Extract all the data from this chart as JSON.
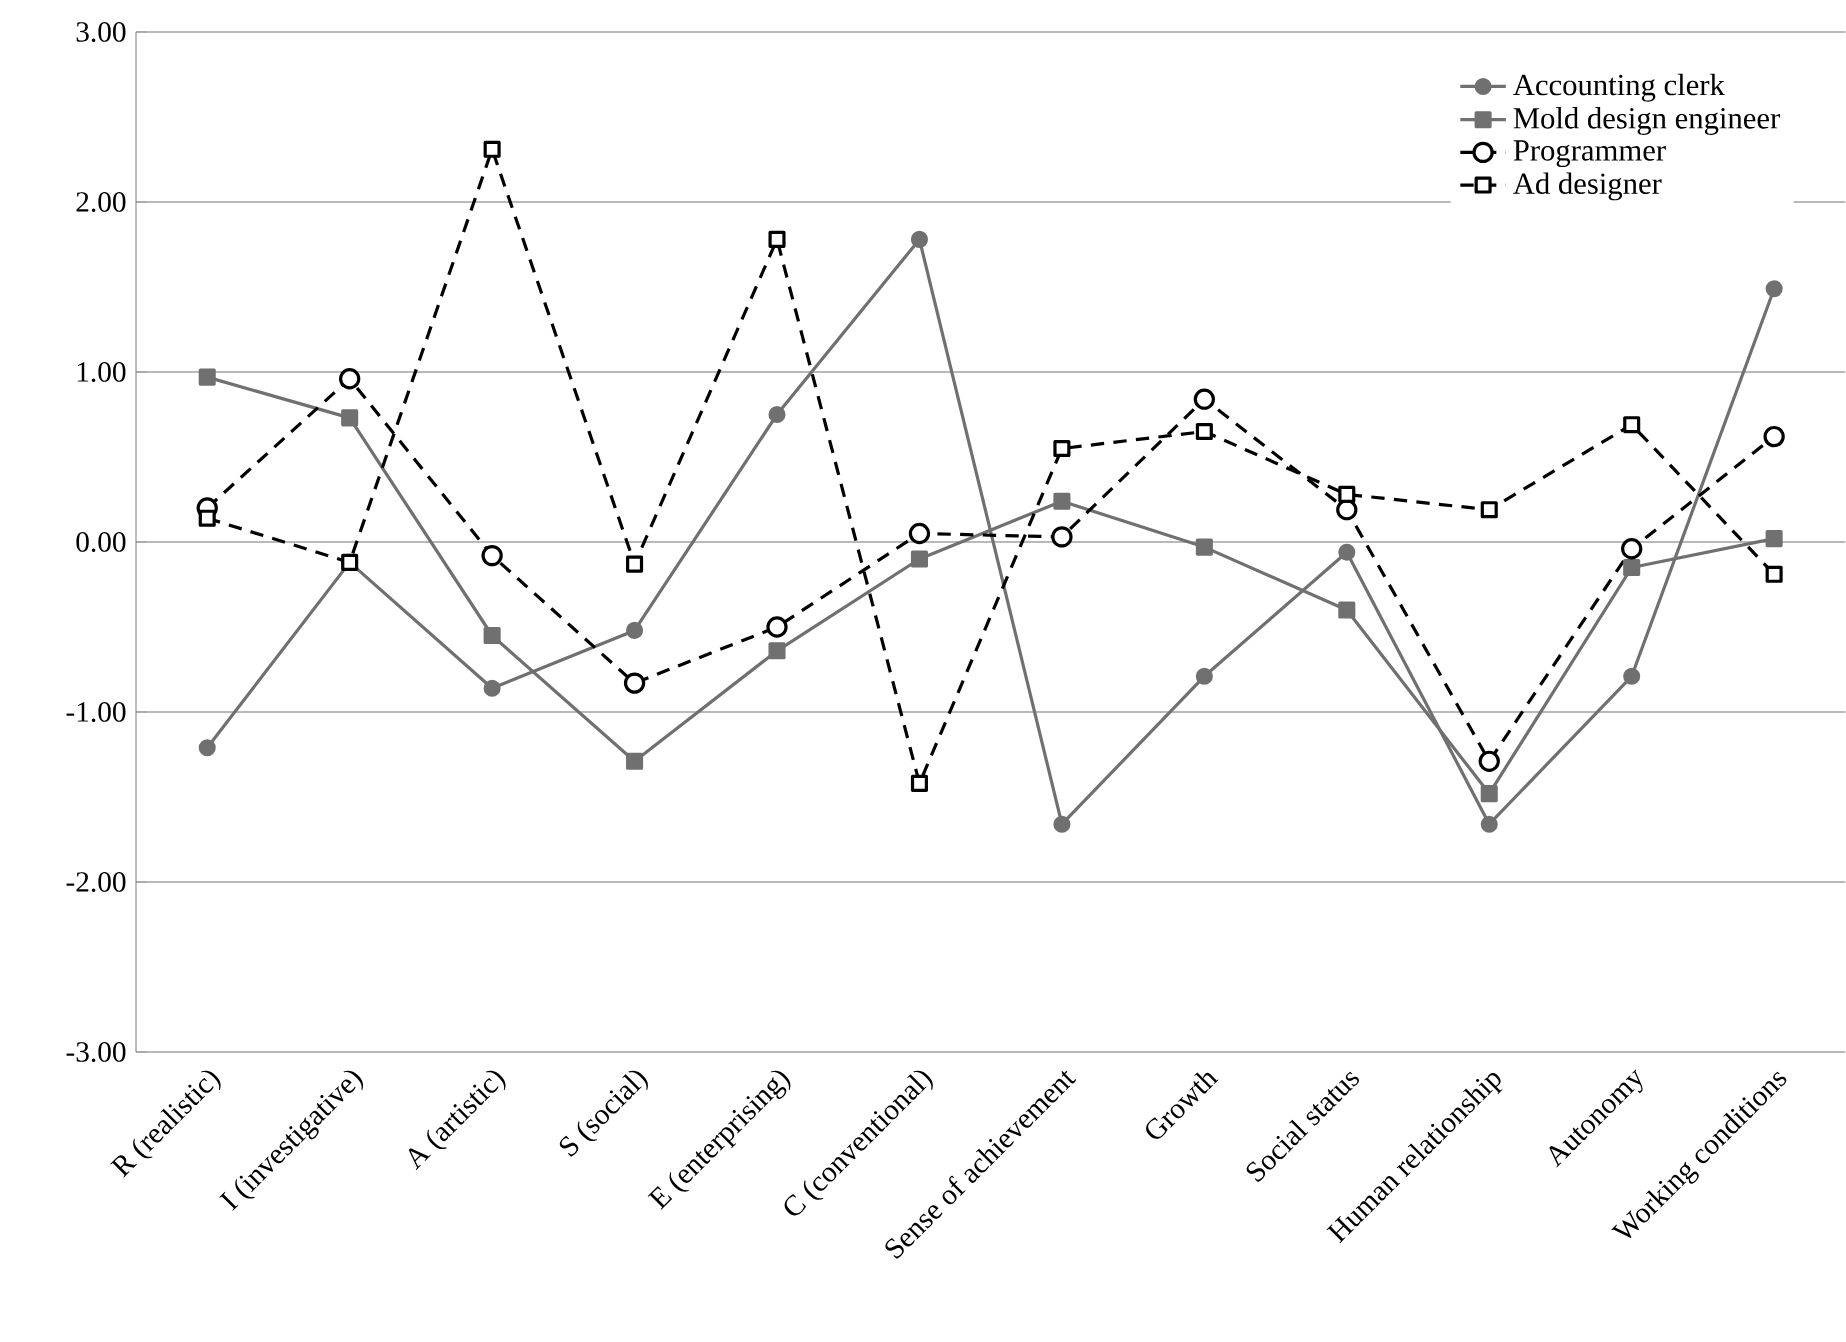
{
  "chart_data": {
    "type": "line",
    "categories": [
      "R (realistic)",
      "I (investigative)",
      "A (artistic)",
      "S (social)",
      "E (enterprising)",
      "C (conventional)",
      "Sense of achievement",
      "Growth",
      "Social status",
      "Human relationship",
      "Autonomy",
      "Working conditions"
    ],
    "ylim": [
      -3,
      3
    ],
    "yticks": [
      {
        "value": -3,
        "label": "-3.00"
      },
      {
        "value": -2,
        "label": "-2.00"
      },
      {
        "value": -1,
        "label": "-1.00"
      },
      {
        "value": 0,
        "label": "0.00"
      },
      {
        "value": 1,
        "label": "1.00"
      },
      {
        "value": 2,
        "label": "2.00"
      },
      {
        "value": 3,
        "label": "3.00"
      }
    ],
    "grid": "y",
    "legend": "top right",
    "series": [
      {
        "name": "Accounting clerk",
        "color": "#707070",
        "marker": "circle",
        "line_style": "solid",
        "values": [
          -1.21,
          -0.12,
          -0.86,
          -0.52,
          0.75,
          1.78,
          -1.66,
          -0.79,
          -0.06,
          -1.66,
          -0.79,
          1.49
        ]
      },
      {
        "name": "Mold design engineer",
        "color": "#707070",
        "marker": "square",
        "line_style": "solid",
        "values": [
          0.97,
          0.73,
          -0.55,
          -1.29,
          -0.64,
          -0.1,
          0.24,
          -0.03,
          -0.4,
          -1.48,
          -0.15,
          0.02
        ]
      },
      {
        "name": "Programmer",
        "color": "#000000",
        "marker": "circle",
        "line_style": "dashed",
        "values": [
          0.2,
          0.96,
          -0.08,
          -0.83,
          -0.5,
          0.05,
          0.03,
          0.84,
          0.19,
          -1.29,
          -0.04,
          0.62
        ]
      },
      {
        "name": "Ad designer",
        "color": "#000000",
        "marker": "square",
        "line_style": "dashed",
        "values": [
          0.14,
          -0.12,
          2.31,
          -0.13,
          1.78,
          -1.42,
          0.55,
          0.65,
          0.28,
          0.19,
          0.69,
          -0.19
        ]
      }
    ]
  }
}
